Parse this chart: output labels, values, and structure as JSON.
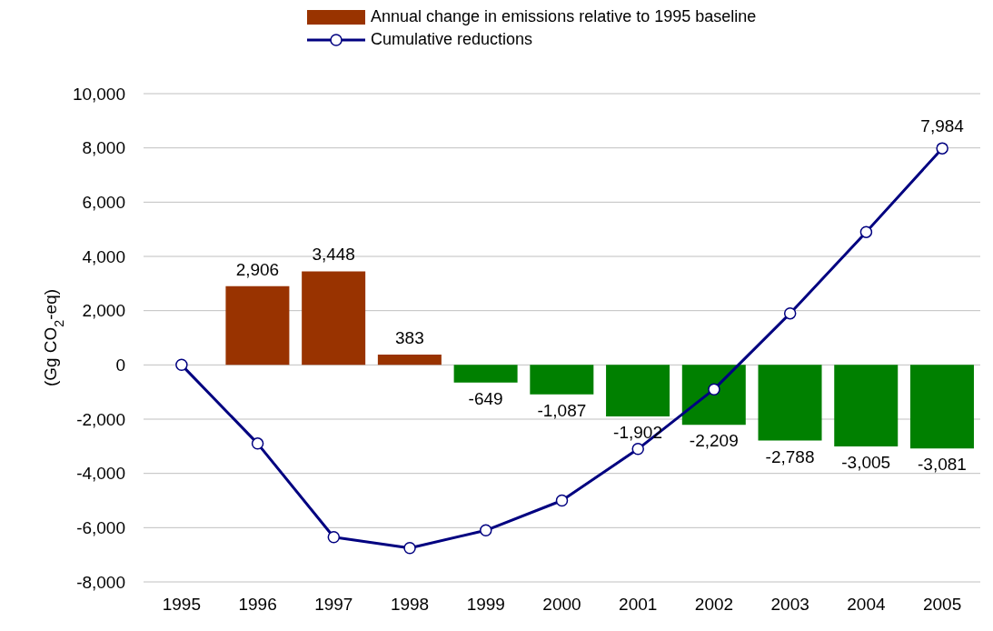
{
  "chart_data": {
    "type": "bar",
    "categories": [
      "1995",
      "1996",
      "1997",
      "1998",
      "1999",
      "2000",
      "2001",
      "2002",
      "2003",
      "2004",
      "2005"
    ],
    "ylabel": "(Gg CO$_{2}$-eq)",
    "series": [
      {
        "name": "Annual change in emissions relative to 1995 baseline",
        "color": "#993300",
        "colors": [
          "#993300",
          "#993300",
          "#993300",
          "#993300",
          "#008000",
          "#008000",
          "#008000",
          "#008000",
          "#008000",
          "#008000",
          "#008000"
        ],
        "values": [
          null,
          2906,
          3448,
          383,
          -649,
          -1087,
          -1902,
          -2209,
          -2788,
          -3005,
          -3081
        ],
        "value_labels": [
          null,
          "2,906",
          "3,448",
          "383",
          "-649",
          "-1,087",
          "-1,902",
          "-2,209",
          "-2,788",
          "-3,005",
          "-3,081"
        ]
      },
      {
        "name": "Cumulative reductions",
        "type": "line",
        "color": "#000080",
        "values": [
          0,
          -2900,
          -6350,
          -6750,
          -6100,
          -5000,
          -3100,
          -900,
          1900,
          4900,
          7984
        ],
        "value_labels": [
          null,
          null,
          null,
          null,
          null,
          null,
          null,
          null,
          null,
          null,
          "7,984"
        ]
      }
    ],
    "ylim": [
      -8000,
      10000
    ],
    "yticks": [
      {
        "value": -8000,
        "label": "-8,000"
      },
      {
        "value": -6000,
        "label": "-6,000"
      },
      {
        "value": -4000,
        "label": "-4,000"
      },
      {
        "value": -2000,
        "label": "-2,000"
      },
      0,
      {
        "value": 2000,
        "label": "2,000"
      },
      {
        "value": 4000,
        "label": "4,000"
      },
      {
        "value": 6000,
        "label": "6,000"
      },
      {
        "value": 8000,
        "label": "8,000"
      },
      {
        "value": 10000,
        "label": "10,000"
      }
    ],
    "grid": "y",
    "legend": "top",
    "marker": "circle",
    "line_style": "solid"
  }
}
